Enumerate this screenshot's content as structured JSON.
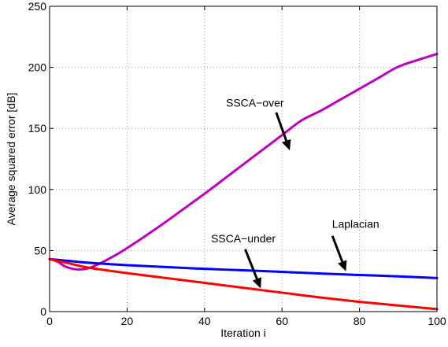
{
  "chart_data": {
    "type": "line",
    "title": "",
    "xlabel": "Iteration i",
    "ylabel": "Average squared error [dB]",
    "xlim": [
      0,
      100
    ],
    "ylim": [
      0,
      250
    ],
    "xticks": [
      0,
      20,
      40,
      60,
      80,
      100
    ],
    "yticks": [
      0,
      50,
      100,
      150,
      200,
      250
    ],
    "grid": true,
    "legend": "none",
    "series": [
      {
        "name": "SSCA−over",
        "color": "#bf00bf",
        "x": [
          0,
          2,
          4,
          6,
          8,
          10,
          12,
          14,
          16,
          18,
          20,
          25,
          30,
          35,
          40,
          45,
          50,
          55,
          60,
          65,
          70,
          75,
          80,
          85,
          90,
          95,
          100
        ],
        "y": [
          43,
          41,
          37,
          35,
          34.5,
          35.5,
          38,
          41,
          44.5,
          48,
          52,
          62.5,
          73.5,
          85,
          96.5,
          108.5,
          120.5,
          132.5,
          144.5,
          156.5,
          164.5,
          173.5,
          182.5,
          191.5,
          200.5,
          206,
          211
        ]
      },
      {
        "name": "Laplacian",
        "color": "#0000ff",
        "x": [
          0,
          5,
          10,
          20,
          30,
          40,
          50,
          60,
          70,
          80,
          90,
          100
        ],
        "y": [
          43,
          41.5,
          40,
          38,
          36.5,
          35,
          33.8,
          32.5,
          31.2,
          30,
          28.8,
          27.5
        ]
      },
      {
        "name": "SSCA−under",
        "color": "#ff0000",
        "x": [
          0,
          5,
          10,
          20,
          30,
          40,
          50,
          60,
          70,
          80,
          90,
          100
        ],
        "y": [
          43,
          39.5,
          36,
          31.5,
          27.5,
          23.5,
          19.5,
          15.5,
          11.5,
          8,
          5,
          2
        ]
      }
    ],
    "annotations": [
      {
        "text": "SSCA−over",
        "label_at": [
          53,
          171
        ],
        "arrow_from": [
          58.5,
          163
        ],
        "arrow_to": [
          62,
          132
        ]
      },
      {
        "text": "Laplacian",
        "label_at": [
          79,
          72
        ],
        "arrow_from": [
          73,
          62
        ],
        "arrow_to": [
          76.5,
          33
        ]
      },
      {
        "text": "SSCA−under",
        "label_at": [
          50,
          60
        ],
        "arrow_from": [
          50.5,
          51
        ],
        "arrow_to": [
          54.5,
          19
        ]
      }
    ]
  }
}
